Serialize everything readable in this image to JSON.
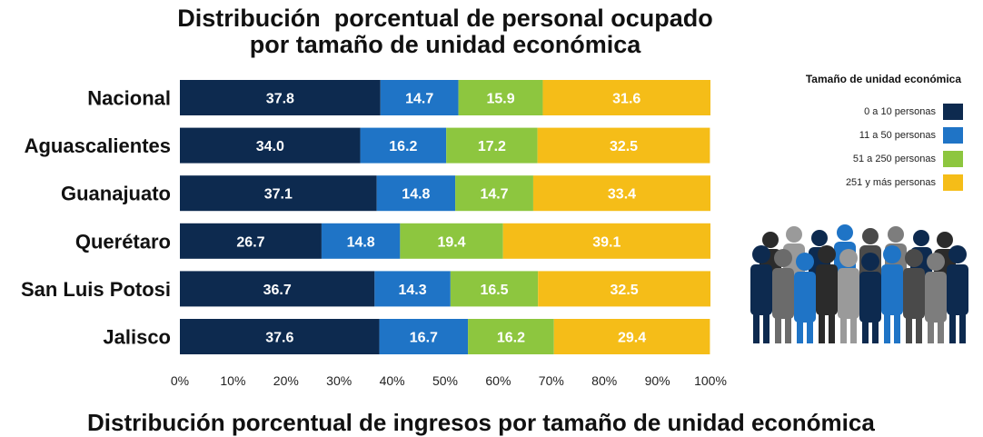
{
  "chart_data": {
    "type": "bar",
    "orientation": "horizontal",
    "stacked": true,
    "title": [
      "Distribución  porcentual de personal ocupado",
      "por tamaño de unidad económica"
    ],
    "categories": [
      "Nacional",
      "Aguascalientes",
      "Guanajuato",
      "Querétaro",
      "San Luis Potosi",
      "Jalisco"
    ],
    "series": [
      {
        "name": "0 a 10 personas",
        "color": "#0d2a4f",
        "values": [
          37.8,
          34.0,
          37.1,
          26.7,
          36.7,
          37.6
        ],
        "labels": [
          "37.8",
          "34.0",
          "37.1",
          "26.7",
          "36.7",
          "37.6"
        ]
      },
      {
        "name": "11 a 50 personas",
        "color": "#1f74c6",
        "values": [
          14.7,
          16.2,
          14.8,
          14.8,
          14.3,
          16.7
        ],
        "labels": [
          "14.7",
          "16.2",
          "14.8",
          "14.8",
          "14.3",
          "16.7"
        ]
      },
      {
        "name": "51 a 250 personas",
        "color": "#8dc63f",
        "values": [
          15.9,
          17.2,
          14.7,
          19.4,
          16.5,
          16.2
        ],
        "labels": [
          "15.9",
          "17.2",
          "14.7",
          "19.4",
          "16.5",
          "16.2"
        ]
      },
      {
        "name": "251 y más personas",
        "color": "#f5bd18",
        "values": [
          31.6,
          32.5,
          33.4,
          39.1,
          32.5,
          29.4
        ],
        "labels": [
          "31.6",
          "32.5",
          "33.4",
          "39.1",
          "32.5",
          "29.4"
        ]
      }
    ],
    "xlim": [
      0,
      100
    ],
    "xticks": [
      "0%",
      "10%",
      "20%",
      "30%",
      "40%",
      "50%",
      "60%",
      "70%",
      "80%",
      "90%",
      "100%"
    ],
    "grid": false,
    "legend": {
      "title": "Tamaño de unidad económica",
      "position": "right"
    }
  },
  "footer_text": "Distribución porcentual de ingresos por tamaño de unidad económica"
}
